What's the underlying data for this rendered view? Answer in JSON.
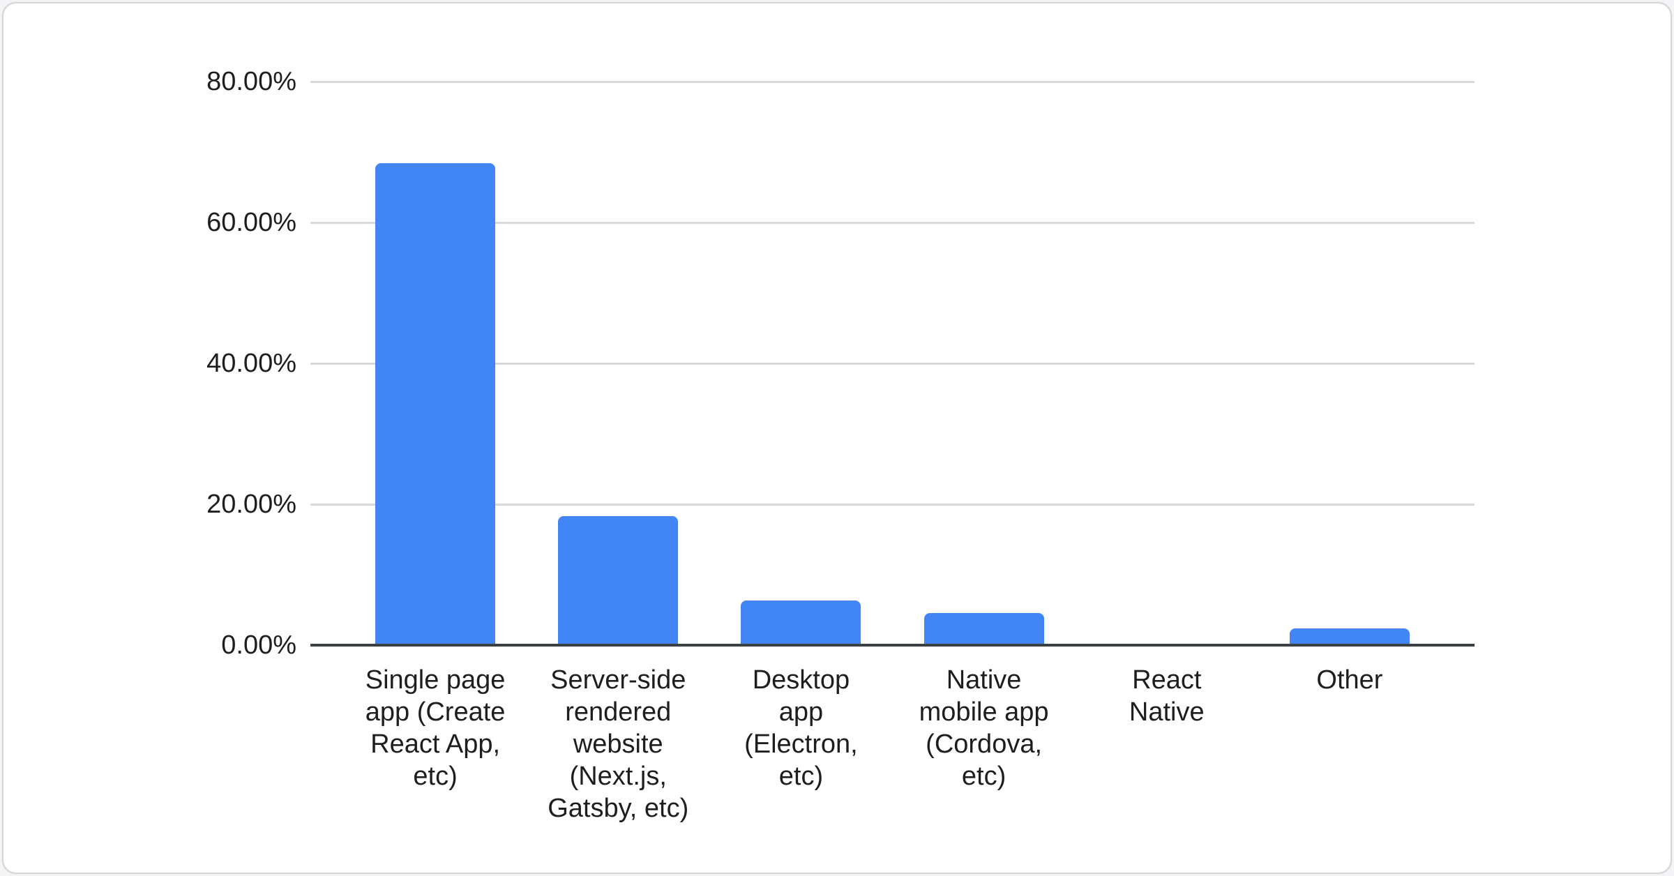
{
  "chart_data": {
    "type": "bar",
    "title": "",
    "xlabel": "",
    "ylabel": "",
    "categories": [
      "Single page app (Create React App, etc)",
      "Server-side rendered website (Next.js, Gatsby, etc)",
      "Desktop app (Electron, etc)",
      "Native mobile app (Cordova, etc)",
      "React Native",
      "Other"
    ],
    "category_lines": [
      [
        "Single page",
        "app (Create",
        "React App,",
        "etc)"
      ],
      [
        "Server-side",
        "rendered",
        "website",
        "(Next.js,",
        "Gatsby, etc)"
      ],
      [
        "Desktop",
        "app",
        "(Electron,",
        "etc)"
      ],
      [
        "Native",
        "mobile app",
        "(Cordova,",
        "etc)"
      ],
      [
        "React",
        "Native"
      ],
      [
        "Other"
      ]
    ],
    "values": [
      68.4,
      18.3,
      6.3,
      4.6,
      0,
      2.4
    ],
    "value_unit": "%",
    "ylim": [
      0,
      80
    ],
    "yticks": [
      {
        "label": "80.00%",
        "value": 80
      },
      {
        "label": "60.00%",
        "value": 60
      },
      {
        "label": "40.00%",
        "value": 40
      },
      {
        "label": "20.00%",
        "value": 20
      },
      {
        "label": "0.00%",
        "value": 0
      }
    ],
    "grid": true,
    "legend": false,
    "colors": {
      "bar": "#4285f4",
      "grid": "#d9d9d9",
      "axis": "#3c4043",
      "text": "#1e1e1e",
      "card_background": "#ffffff",
      "card_border": "#d5d5da"
    }
  }
}
